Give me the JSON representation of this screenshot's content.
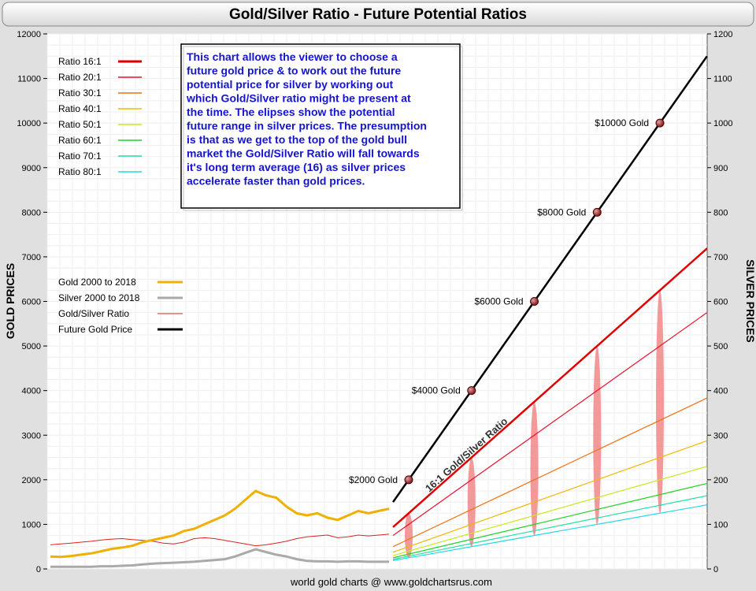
{
  "chart_data": {
    "type": "line",
    "title": "Gold/Silver Ratio - Future Potential Ratios",
    "left_axis_label": "GOLD PRICES",
    "right_axis_label": "SILVER PRICES",
    "footer": "world gold charts @ www.goldchartsrus.com",
    "ylim_left": [
      0,
      12000
    ],
    "ylim_right": [
      0,
      1200
    ],
    "left_ticks": [
      0,
      1000,
      2000,
      3000,
      4000,
      5000,
      6000,
      7000,
      8000,
      9000,
      10000,
      11000,
      12000
    ],
    "right_ticks": [
      0,
      100,
      200,
      300,
      400,
      500,
      600,
      700,
      800,
      900,
      1000,
      1100,
      1200
    ],
    "info_text": "This chart allows the viewer to choose a future gold price & to work out the future potential price for silver by working out which Gold/Silver ratio might be present at the time. The elipses show the potential future range in silver prices. The presumption is that as we get to the top of the gold bull market the Gold/Silver Ratio will fall towards it's long term average (16) as silver prices accelerate faster than gold prices.",
    "ratio_line_label": "16:1 Gold/Silver Ratio",
    "ratio_legend": [
      {
        "name": "Ratio 16:1",
        "ratio": 16,
        "color": "#e00000"
      },
      {
        "name": "Ratio 20:1",
        "ratio": 20,
        "color": "#e8102a"
      },
      {
        "name": "Ratio 30:1",
        "ratio": 30,
        "color": "#f07010"
      },
      {
        "name": "Ratio 40:1",
        "ratio": 40,
        "color": "#f0b800"
      },
      {
        "name": "Ratio 50:1",
        "ratio": 50,
        "color": "#c8e820"
      },
      {
        "name": "Ratio 60:1",
        "ratio": 60,
        "color": "#20d020"
      },
      {
        "name": "Ratio 70:1",
        "ratio": 70,
        "color": "#20e0a0"
      },
      {
        "name": "Ratio 80:1",
        "ratio": 80,
        "color": "#20d8e8"
      }
    ],
    "series_legend": [
      {
        "name": "Gold 2000 to 2018",
        "color": "#f0b000"
      },
      {
        "name": "Silver 2000 to 2018",
        "color": "#aaaaaa"
      },
      {
        "name": "Gold/Silver Ratio",
        "color": "#e02020"
      },
      {
        "name": "Future Gold Price",
        "color": "#000000"
      }
    ],
    "future_gold_points": [
      {
        "label": "$2000 Gold",
        "gold": 2000
      },
      {
        "label": "$4000 Gold",
        "gold": 4000
      },
      {
        "label": "$6000 Gold",
        "gold": 6000
      },
      {
        "label": "$8000 Gold",
        "gold": 8000
      },
      {
        "label": "$10000 Gold",
        "gold": 10000
      }
    ],
    "future_gold_range": [
      1500,
      11500
    ],
    "historical_gold": [
      280,
      270,
      290,
      320,
      350,
      400,
      450,
      480,
      520,
      600,
      650,
      700,
      750,
      850,
      900,
      1000,
      1100,
      1200,
      1350,
      1550,
      1750,
      1650,
      1600,
      1400,
      1250,
      1200,
      1250,
      1150,
      1100,
      1200,
      1300,
      1250,
      1300,
      1350
    ],
    "historical_silver": [
      5,
      5,
      5,
      5,
      5,
      6,
      6,
      7,
      8,
      10,
      12,
      13,
      14,
      15,
      16,
      18,
      20,
      22,
      28,
      36,
      44,
      38,
      32,
      28,
      22,
      18,
      17,
      17,
      16,
      17,
      17,
      16,
      16,
      16
    ],
    "historical_ratio": [
      540,
      560,
      580,
      600,
      620,
      650,
      670,
      680,
      660,
      640,
      620,
      580,
      560,
      600,
      680,
      700,
      680,
      640,
      600,
      560,
      520,
      540,
      580,
      620,
      680,
      720,
      740,
      760,
      700,
      720,
      760,
      740,
      760,
      780
    ]
  }
}
